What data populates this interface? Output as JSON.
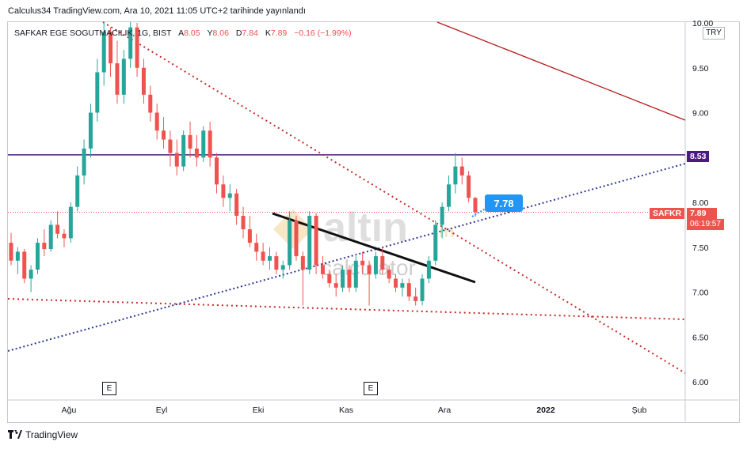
{
  "header": {
    "publisher": "Calculus34 TradingView.com, Ara 10, 2021 11:05 UTC+2 tarihinde yayınlandı"
  },
  "legend": {
    "symbol": "SAFKAR EGE SOGUTMACILIK, 1G, BIST",
    "o_label": "A",
    "o": "8.05",
    "h_label": "Y",
    "h": "8.06",
    "l_label": "D",
    "l": "7.84",
    "c_label": "K",
    "c": "7.89",
    "change": "−0.16 (−1.99%)"
  },
  "currency_chip": "TRY",
  "price_tags": {
    "level": "8.53",
    "ticker": "SAFKR",
    "last": "7.89",
    "countdown": "06:19:57",
    "callout": "7.78"
  },
  "events": [
    "E",
    "E"
  ],
  "footer": {
    "brand": "TradingView"
  },
  "watermark": {
    "top": "altın",
    "sub": ".in",
    "bottom": "calculator"
  },
  "colors": {
    "up": "#26a69a",
    "down": "#ef5350",
    "level": "#4a1a7e",
    "blue": "#2962ff",
    "red_line": "#b71c1c",
    "callout": "#2196f3",
    "wick": "#131722"
  },
  "chart_data": {
    "type": "candlestick",
    "x_axis": {
      "tick_labels": [
        "Ağu",
        "Eyl",
        "Eki",
        "Kas",
        "Ara",
        "2022",
        "Şub"
      ]
    },
    "y_axis": {
      "tick_labels": [
        "6.00",
        "6.50",
        "7.00",
        "7.50",
        "8.00",
        "8.50",
        "9.00",
        "9.50",
        "10.00"
      ],
      "range": [
        5.8,
        10.05
      ]
    },
    "horizontal_level": 8.53,
    "last_price": 7.89,
    "callout_value": 7.78,
    "candles_ohlc": [
      [
        7.55,
        7.66,
        7.3,
        7.35
      ],
      [
        7.35,
        7.5,
        7.2,
        7.45
      ],
      [
        7.45,
        7.48,
        7.1,
        7.15
      ],
      [
        7.15,
        7.3,
        7.0,
        7.25
      ],
      [
        7.25,
        7.6,
        7.2,
        7.55
      ],
      [
        7.55,
        7.7,
        7.4,
        7.48
      ],
      [
        7.48,
        7.8,
        7.45,
        7.75
      ],
      [
        7.75,
        7.9,
        7.6,
        7.65
      ],
      [
        7.65,
        7.7,
        7.5,
        7.6
      ],
      [
        7.6,
        8.0,
        7.55,
        7.95
      ],
      [
        7.95,
        8.4,
        7.9,
        8.3
      ],
      [
        8.3,
        8.7,
        8.2,
        8.6
      ],
      [
        8.6,
        9.1,
        8.5,
        9.0
      ],
      [
        9.0,
        9.6,
        8.9,
        9.45
      ],
      [
        9.45,
        10.1,
        9.3,
        9.9
      ],
      [
        9.9,
        9.95,
        9.4,
        9.55
      ],
      [
        9.55,
        9.8,
        9.1,
        9.2
      ],
      [
        9.2,
        9.7,
        9.1,
        9.6
      ],
      [
        9.6,
        10.1,
        9.5,
        9.95
      ],
      [
        9.95,
        10.0,
        9.4,
        9.5
      ],
      [
        9.5,
        9.6,
        9.1,
        9.2
      ],
      [
        9.2,
        9.3,
        8.9,
        9.0
      ],
      [
        9.0,
        9.1,
        8.7,
        8.8
      ],
      [
        8.8,
        8.95,
        8.6,
        8.7
      ],
      [
        8.7,
        8.8,
        8.4,
        8.55
      ],
      [
        8.55,
        8.7,
        8.3,
        8.4
      ],
      [
        8.4,
        8.8,
        8.35,
        8.75
      ],
      [
        8.75,
        8.9,
        8.5,
        8.6
      ],
      [
        8.6,
        8.75,
        8.4,
        8.5
      ],
      [
        8.5,
        8.85,
        8.45,
        8.8
      ],
      [
        8.8,
        8.9,
        8.4,
        8.5
      ],
      [
        8.5,
        8.55,
        8.1,
        8.2
      ],
      [
        8.2,
        8.3,
        7.95,
        8.05
      ],
      [
        8.05,
        8.2,
        7.9,
        8.1
      ],
      [
        8.1,
        8.15,
        7.75,
        7.85
      ],
      [
        7.85,
        7.95,
        7.6,
        7.7
      ],
      [
        7.7,
        7.85,
        7.5,
        7.55
      ],
      [
        7.55,
        7.65,
        7.35,
        7.45
      ],
      [
        7.45,
        7.55,
        7.3,
        7.35
      ],
      [
        7.35,
        7.5,
        7.25,
        7.4
      ],
      [
        7.4,
        7.45,
        7.2,
        7.25
      ],
      [
        7.25,
        7.35,
        7.15,
        7.3
      ],
      [
        7.3,
        7.9,
        7.25,
        7.8
      ],
      [
        7.8,
        7.85,
        7.35,
        7.4
      ],
      [
        7.4,
        7.45,
        6.85,
        7.25
      ],
      [
        7.25,
        7.9,
        7.2,
        7.85
      ],
      [
        7.85,
        7.88,
        7.2,
        7.3
      ],
      [
        7.3,
        7.4,
        7.15,
        7.2
      ],
      [
        7.2,
        7.25,
        7.05,
        7.1
      ],
      [
        7.1,
        7.2,
        6.95,
        7.05
      ],
      [
        7.05,
        7.3,
        7.0,
        7.25
      ],
      [
        7.25,
        7.3,
        7.0,
        7.05
      ],
      [
        7.05,
        7.4,
        7.0,
        7.35
      ],
      [
        7.35,
        7.45,
        7.2,
        7.3
      ],
      [
        7.3,
        7.35,
        6.85,
        7.2
      ],
      [
        7.2,
        7.45,
        7.15,
        7.4
      ],
      [
        7.4,
        7.5,
        7.2,
        7.25
      ],
      [
        7.25,
        7.3,
        7.1,
        7.15
      ],
      [
        7.15,
        7.2,
        7.0,
        7.05
      ],
      [
        7.05,
        7.15,
        6.95,
        7.1
      ],
      [
        7.1,
        7.15,
        6.9,
        6.95
      ],
      [
        6.95,
        7.05,
        6.85,
        6.9
      ],
      [
        6.9,
        7.2,
        6.85,
        7.15
      ],
      [
        7.15,
        7.4,
        7.1,
        7.35
      ],
      [
        7.35,
        7.8,
        7.3,
        7.75
      ],
      [
        7.75,
        8.0,
        7.6,
        7.95
      ],
      [
        7.95,
        8.3,
        7.9,
        8.2
      ],
      [
        8.2,
        8.55,
        8.1,
        8.4
      ],
      [
        8.4,
        8.5,
        8.2,
        8.3
      ],
      [
        8.3,
        8.35,
        8.0,
        8.05
      ],
      [
        8.05,
        8.06,
        7.84,
        7.89
      ]
    ]
  }
}
